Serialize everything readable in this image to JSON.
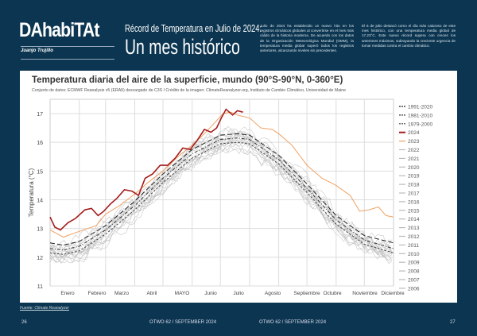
{
  "header": {
    "brand": "DAhabiTAt",
    "author": "Juanjo Trujillo",
    "kicker": "Récord de Temperatura en Julio de 2024:",
    "headline": "Un mes histórico",
    "col1": "Julio de 2024 ha establecido un nuevo hito en los registros climáticos globales al convertirse en el mes más cálido de la historia moderna. De acuerdo con los datos de la Organización Meteorológica Mundial (OMM), la temperatura media global superó todos los registros anteriores, alcanzando niveles sin precedentes.",
    "col2": "El 6 de julio destacó como el día más caluroso de este mes histórico, con una temperatura media global de 17,23°C. Este nuevo récord supera con creces los anteriores máximos, subrayando la creciente urgencia de tomar medidas contra el cambio climático."
  },
  "footer": {
    "source": "Fuente: Climate Reanalyzer",
    "page_left": "26",
    "page_right": "27",
    "issue_left": "OTWO 62 / SEPTEMBER 2024",
    "issue_right": "OTWO 62 / SEPTEMBER 2024"
  },
  "chart_data": {
    "type": "line",
    "title": "Temperatura diaria del aire de la superficie, mundo (90°S-90°N, 0-360°E)",
    "subtitle": "Conjunto de datos: ECMWF Reanalysis v5 (ERA5) descargado de C3S I Crédito de la imagen: ClimateReanalyzer.org, Instituto de Cambio Climático, Universidad de Maine",
    "ylabel": "Temperatura (°C)",
    "ylim": [
      11,
      17.5
    ],
    "yticks": [
      11,
      12,
      13,
      14,
      15,
      16,
      17
    ],
    "xlim": [
      1,
      366
    ],
    "grid": true,
    "legend": "right",
    "xticks": [
      "Enero",
      "Febrero",
      "Marzo",
      "Abril",
      "MAYO",
      "Junio",
      "Julio",
      "Agosto",
      "Septiembre",
      "Octubre",
      "Noviembre",
      "Diciembre"
    ],
    "series": [
      {
        "name": "1991-2020",
        "color": "#222222",
        "style": "long-dash",
        "x": [
          1,
          15,
          32,
          60,
          91,
          121,
          152,
          182,
          200,
          213,
          244,
          274,
          305,
          335,
          366
        ],
        "y": [
          12.5,
          12.42,
          12.55,
          13.1,
          13.95,
          14.9,
          15.75,
          16.25,
          16.3,
          16.25,
          15.55,
          14.55,
          13.45,
          12.75,
          12.5
        ]
      },
      {
        "name": "1981-2010",
        "color": "#333333",
        "style": "dash-dot",
        "x": [
          1,
          15,
          32,
          60,
          91,
          121,
          152,
          182,
          200,
          213,
          244,
          274,
          305,
          335,
          366
        ],
        "y": [
          12.3,
          12.25,
          12.38,
          12.95,
          13.8,
          14.75,
          15.6,
          16.1,
          16.15,
          16.1,
          15.4,
          14.4,
          13.3,
          12.6,
          12.3
        ]
      },
      {
        "name": "1979-2000",
        "color": "#444444",
        "style": "short-dash",
        "x": [
          1,
          15,
          32,
          60,
          91,
          121,
          152,
          182,
          200,
          213,
          244,
          274,
          305,
          335,
          366
        ],
        "y": [
          12.15,
          12.1,
          12.22,
          12.8,
          13.65,
          14.6,
          15.45,
          15.95,
          16.0,
          15.95,
          15.25,
          14.25,
          13.15,
          12.45,
          12.15
        ]
      },
      {
        "name": "2024",
        "color": "#a51c1c",
        "style": "solid-thick",
        "x": [
          1,
          6,
          12,
          20,
          28,
          38,
          45,
          52,
          58,
          65,
          72,
          80,
          88,
          95,
          102,
          110,
          118,
          126,
          134,
          142,
          150,
          158,
          165,
          172,
          178,
          183,
          188,
          195,
          200,
          206
        ],
        "y": [
          13.4,
          13.05,
          12.95,
          13.2,
          13.35,
          13.65,
          13.7,
          13.45,
          13.6,
          13.85,
          14.05,
          14.35,
          14.3,
          14.15,
          14.75,
          14.9,
          15.2,
          15.2,
          15.45,
          15.8,
          15.75,
          16.1,
          16.45,
          16.35,
          16.5,
          16.85,
          17.15,
          16.95,
          17.1,
          17.05
        ]
      },
      {
        "name": "2023",
        "color": "#f0a060",
        "style": "solid",
        "x": [
          1,
          15,
          32,
          50,
          60,
          75,
          91,
          105,
          121,
          135,
          152,
          165,
          175,
          185,
          193,
          200,
          213,
          225,
          237,
          244,
          258,
          274,
          290,
          305,
          320,
          330,
          340,
          350,
          358,
          366
        ],
        "y": [
          12.95,
          12.7,
          12.9,
          13.1,
          13.5,
          13.8,
          14.2,
          14.6,
          15.0,
          15.45,
          15.9,
          16.3,
          16.65,
          17.0,
          17.05,
          16.95,
          16.85,
          16.5,
          16.45,
          16.3,
          15.9,
          15.2,
          14.75,
          14.5,
          14.15,
          13.6,
          13.65,
          13.75,
          13.45,
          13.4
        ]
      },
      {
        "name": "2022",
        "color": "#bbbbbb",
        "anomaly": 0.25
      },
      {
        "name": "2021",
        "color": "#bbbbbb",
        "anomaly": 0.15
      },
      {
        "name": "2020",
        "color": "#bbbbbb",
        "anomaly": 0.35
      },
      {
        "name": "2019",
        "color": "#bbbbbb",
        "anomaly": 0.3
      },
      {
        "name": "2018",
        "color": "#bbbbbb",
        "anomaly": 0.15
      },
      {
        "name": "2017",
        "color": "#bbbbbb",
        "anomaly": 0.2
      },
      {
        "name": "2016",
        "color": "#bbbbbb",
        "anomaly": 0.35
      },
      {
        "name": "2015",
        "color": "#bbbbbb",
        "anomaly": 0.1
      },
      {
        "name": "2014",
        "color": "#bbbbbb",
        "anomaly": 0.0
      },
      {
        "name": "2013",
        "color": "#bbbbbb",
        "anomaly": -0.05
      },
      {
        "name": "2012",
        "color": "#bbbbbb",
        "anomaly": -0.1
      },
      {
        "name": "2011",
        "color": "#bbbbbb",
        "anomaly": -0.1
      },
      {
        "name": "2010",
        "color": "#bbbbbb",
        "anomaly": 0.05
      },
      {
        "name": "2009",
        "color": "#bbbbbb",
        "anomaly": -0.05
      },
      {
        "name": "2008",
        "color": "#bbbbbb",
        "anomaly": -0.2
      },
      {
        "name": "2007",
        "color": "#bbbbbb",
        "anomaly": -0.1
      },
      {
        "name": "2006",
        "color": "#bbbbbb",
        "anomaly": -0.15
      }
    ]
  }
}
